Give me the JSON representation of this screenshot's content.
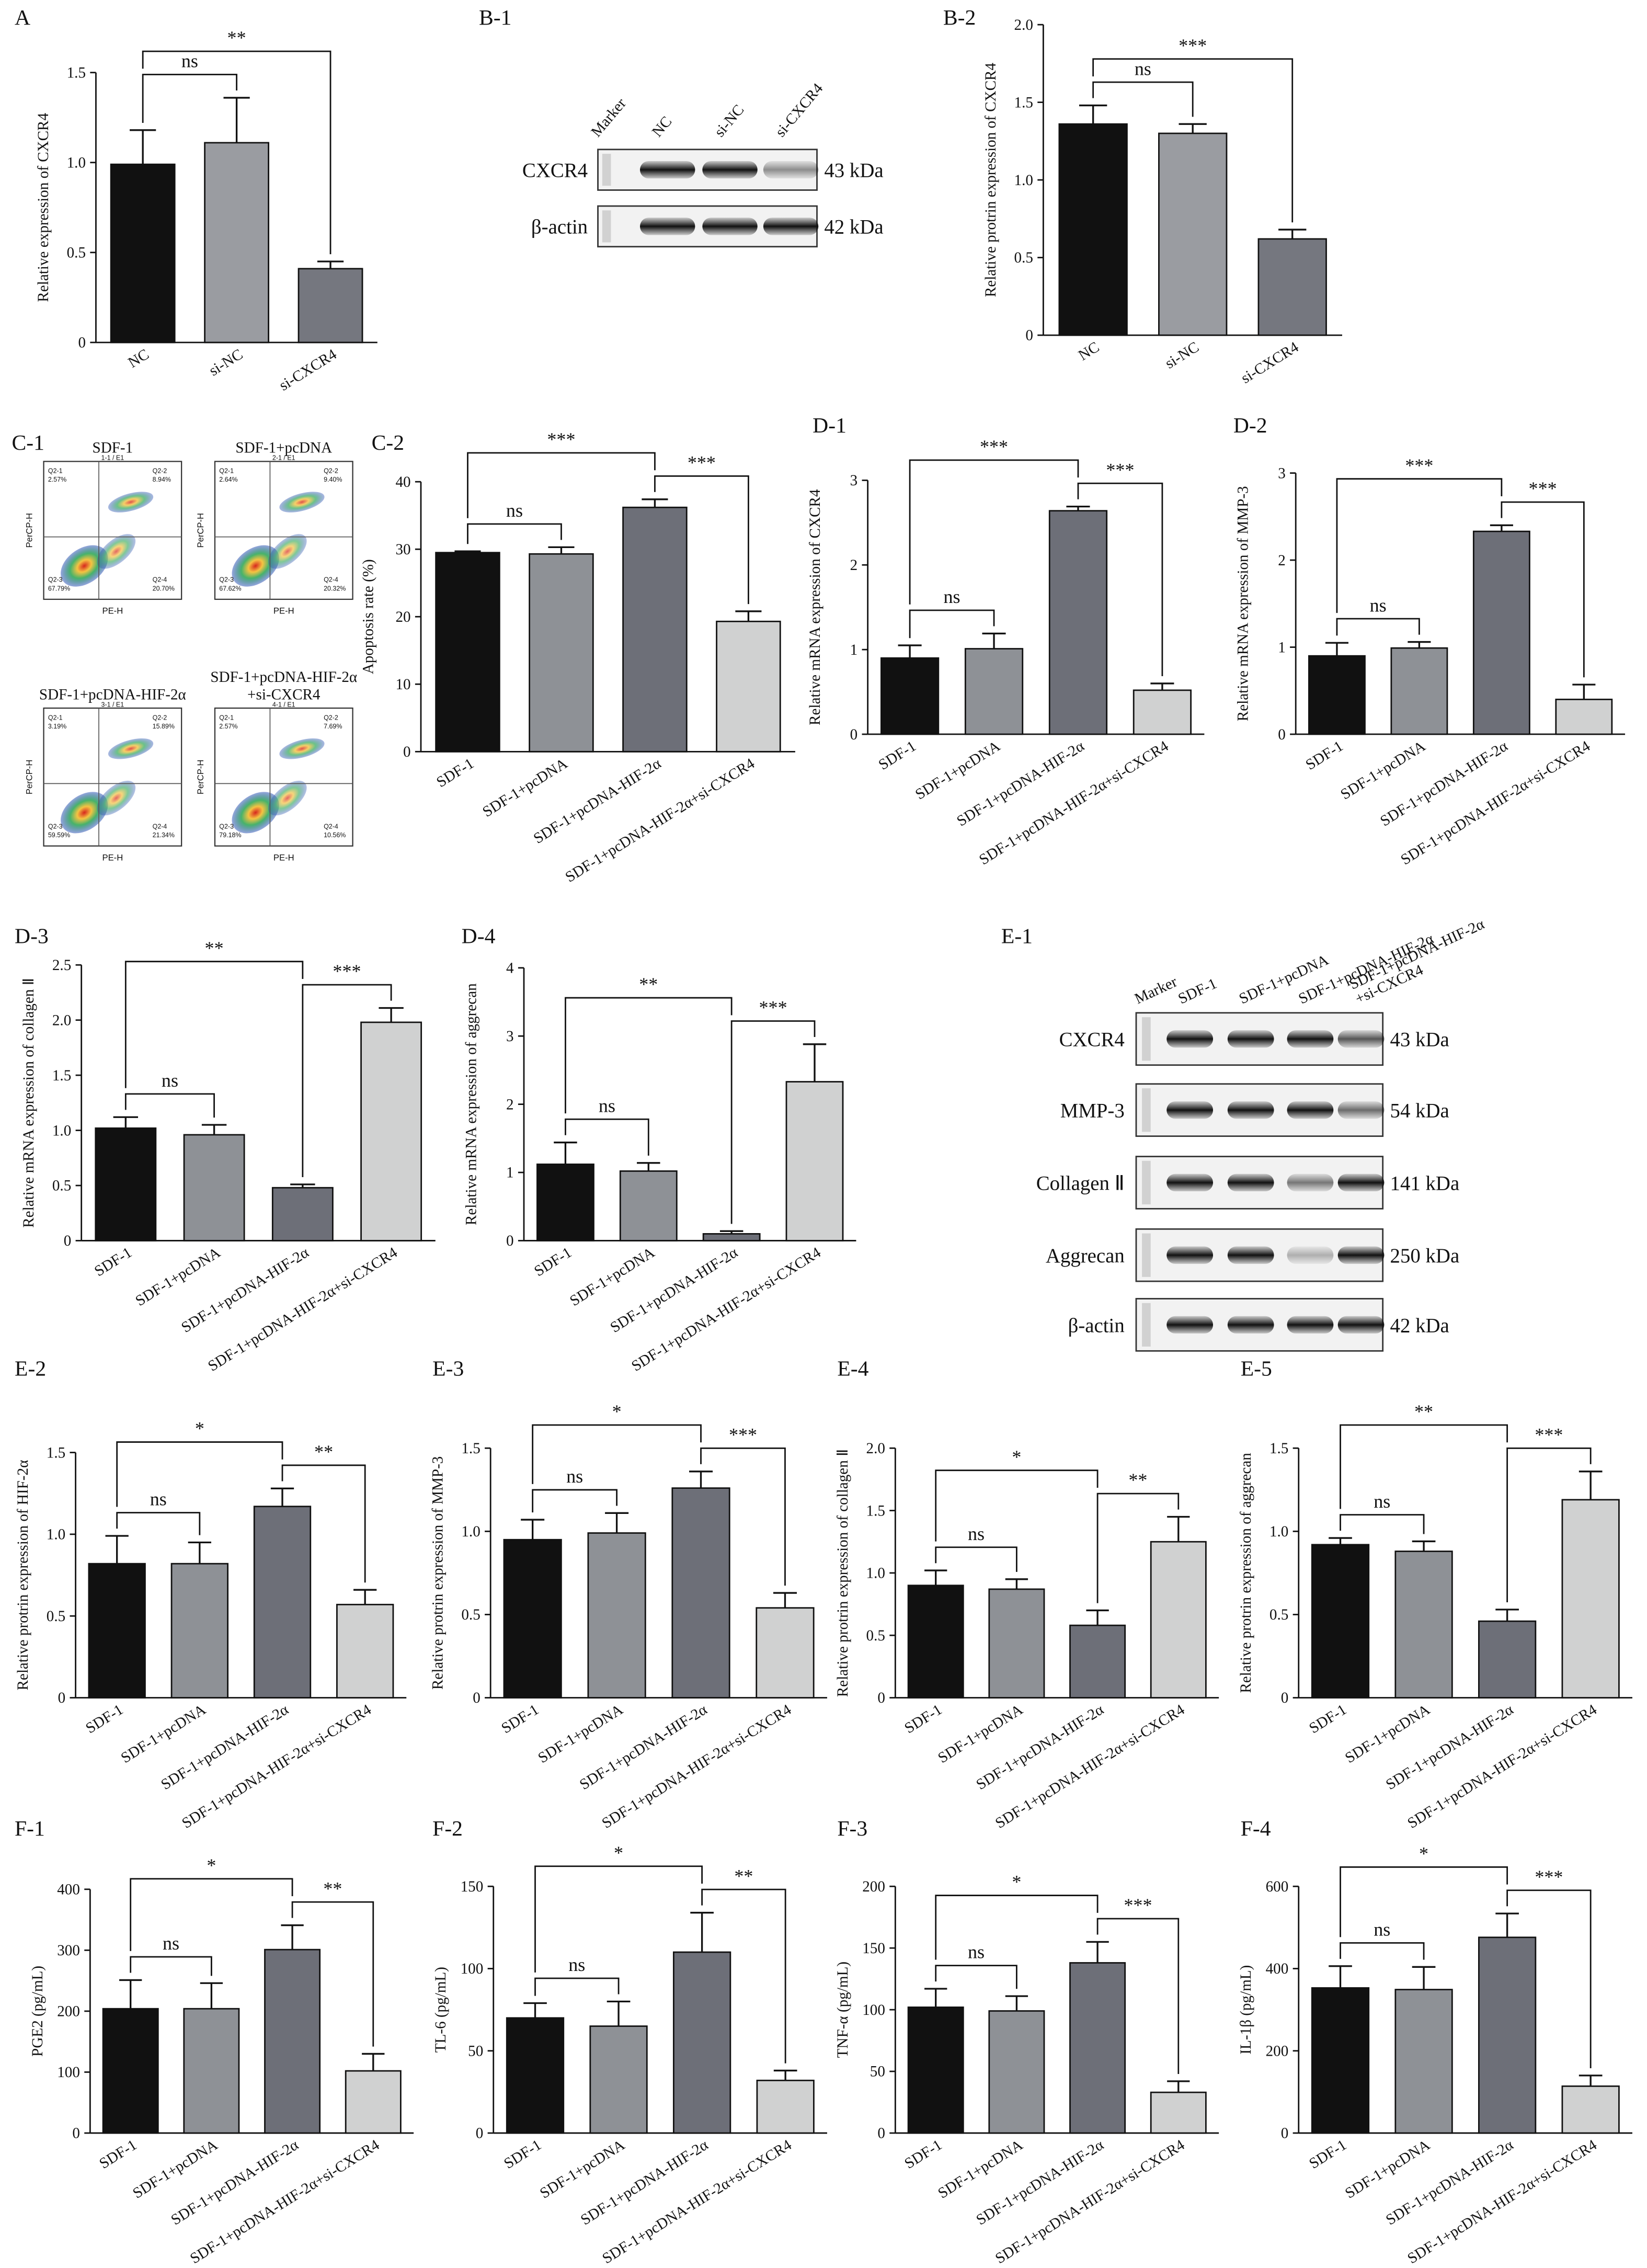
{
  "chart_data": [
    {
      "type": "bar",
      "panel": "A",
      "y_label": "Relative expression of CXCR4",
      "categories": [
        "NC",
        "si-NC",
        "si-CXCR4"
      ],
      "values": [
        0.99,
        1.11,
        0.41
      ],
      "errors": [
        0.19,
        0.25,
        0.04
      ],
      "colors": [
        "#111111",
        "#9a9ca1",
        "#75777f"
      ],
      "ylim": [
        0,
        1.5
      ],
      "yticks": [
        0,
        0.5,
        {
          "value": 1,
          "label": "1.0"
        },
        1.5
      ],
      "comparisons": [
        {
          "from": "NC",
          "to": "si-NC",
          "label": "ns"
        },
        {
          "from": "NC",
          "to": "si-CXCR4",
          "label": "**"
        }
      ]
    },
    {
      "type": "bar",
      "panel": "B-2",
      "y_label": "Relative protrin expression of CXCR4",
      "categories": [
        "NC",
        "si-NC",
        "si-CXCR4"
      ],
      "values": [
        1.36,
        1.3,
        0.62
      ],
      "errors": [
        0.12,
        0.06,
        0.06
      ],
      "colors": [
        "#111111",
        "#9a9ca1",
        "#75777f"
      ],
      "ylim": [
        0,
        2
      ],
      "yticks": [
        0,
        0.5,
        {
          "value": 1,
          "label": "1.0"
        },
        1.5,
        {
          "value": 2,
          "label": "2.0"
        }
      ],
      "comparisons": [
        {
          "from": "NC",
          "to": "si-NC",
          "label": "ns"
        },
        {
          "from": "NC",
          "to": "si-CXCR4",
          "label": "***"
        }
      ]
    },
    {
      "type": "bar",
      "panel": "C-2",
      "y_label": "Apoptosis rate (%)",
      "categories": [
        "SDF-1",
        "SDF-1+pcDNA",
        "SDF-1+pcDNA-HIF-2α",
        "SDF-1+pcDNA-HIF-2α+si-CXCR4"
      ],
      "values": [
        29.5,
        29.3,
        36.2,
        19.3
      ],
      "errors": [
        0.2,
        1.0,
        1.2,
        1.5
      ],
      "colors": [
        "#111111",
        "#8e9196",
        "#6d6f78",
        "#d0d1d1"
      ],
      "ylim": [
        0,
        40
      ],
      "yticks": [
        0,
        10,
        20,
        30,
        40
      ],
      "comparisons": [
        {
          "from": "SDF-1",
          "to": "SDF-1+pcDNA",
          "label": "ns"
        },
        {
          "from": "SDF-1+pcDNA-HIF-2α",
          "to": "SDF-1+pcDNA-HIF-2α+si-CXCR4",
          "label": "***"
        },
        {
          "from": "SDF-1",
          "to": "SDF-1+pcDNA-HIF-2α",
          "label": "***"
        }
      ]
    },
    {
      "type": "bar",
      "panel": "D-1",
      "y_label": "Relative mRNA expression of CXCR4",
      "categories": [
        "SDF-1",
        "SDF-1+pcDNA",
        "SDF-1+pcDNA-HIF-2α",
        "SDF-1+pcDNA-HIF-2α+si-CXCR4"
      ],
      "values": [
        0.9,
        1.01,
        2.64,
        0.52
      ],
      "errors": [
        0.15,
        0.18,
        0.05,
        0.08
      ],
      "colors": [
        "#111111",
        "#8e9196",
        "#6d6f78",
        "#d0d1d1"
      ],
      "ylim": [
        0,
        3
      ],
      "yticks": [
        0,
        1,
        2,
        3
      ],
      "comparisons": [
        {
          "from": "SDF-1",
          "to": "SDF-1+pcDNA",
          "label": "ns"
        },
        {
          "from": "SDF-1+pcDNA-HIF-2α",
          "to": "SDF-1+pcDNA-HIF-2α+si-CXCR4",
          "label": "***"
        },
        {
          "from": "SDF-1",
          "to": "SDF-1+pcDNA-HIF-2α",
          "label": "***"
        }
      ]
    },
    {
      "type": "bar",
      "panel": "D-2",
      "y_label": "Relative mRNA expression of MMP-3",
      "categories": [
        "SDF-1",
        "SDF-1+pcDNA",
        "SDF-1+pcDNA-HIF-2α",
        "SDF-1+pcDNA-HIF-2α+si-CXCR4"
      ],
      "values": [
        0.9,
        0.99,
        2.33,
        0.4
      ],
      "errors": [
        0.15,
        0.07,
        0.07,
        0.17
      ],
      "colors": [
        "#111111",
        "#8e9196",
        "#6d6f78",
        "#d0d1d1"
      ],
      "ylim": [
        0,
        3
      ],
      "yticks": [
        0,
        1,
        2,
        3
      ],
      "comparisons": [
        {
          "from": "SDF-1",
          "to": "SDF-1+pcDNA",
          "label": "ns"
        },
        {
          "from": "SDF-1+pcDNA-HIF-2α",
          "to": "SDF-1+pcDNA-HIF-2α+si-CXCR4",
          "label": "***"
        },
        {
          "from": "SDF-1",
          "to": "SDF-1+pcDNA-HIF-2α",
          "label": "***"
        }
      ]
    },
    {
      "type": "bar",
      "panel": "D-3",
      "y_label": "Relative mRNA expression of collagen Ⅱ",
      "categories": [
        "SDF-1",
        "SDF-1+pcDNA",
        "SDF-1+pcDNA-HIF-2α",
        "SDF-1+pcDNA-HIF-2α+si-CXCR4"
      ],
      "values": [
        1.02,
        0.96,
        0.48,
        1.98
      ],
      "errors": [
        0.1,
        0.09,
        0.03,
        0.13
      ],
      "colors": [
        "#111111",
        "#8e9196",
        "#6d6f78",
        "#d0d1d1"
      ],
      "ylim": [
        0,
        2.5
      ],
      "yticks": [
        0,
        0.5,
        {
          "value": 1,
          "label": "1.0"
        },
        1.5,
        {
          "value": 2,
          "label": "2.0"
        },
        2.5
      ],
      "comparisons": [
        {
          "from": "SDF-1",
          "to": "SDF-1+pcDNA",
          "label": "ns"
        },
        {
          "from": "SDF-1+pcDNA-HIF-2α",
          "to": "SDF-1+pcDNA-HIF-2α+si-CXCR4",
          "label": "***"
        },
        {
          "from": "SDF-1",
          "to": "SDF-1+pcDNA-HIF-2α",
          "label": "**"
        }
      ]
    },
    {
      "type": "bar",
      "panel": "D-4",
      "y_label": "Relative mRNA expression of aggrecan",
      "categories": [
        "SDF-1",
        "SDF-1+pcDNA",
        "SDF-1+pcDNA-HIF-2α",
        "SDF-1+pcDNA-HIF-2α+si-CXCR4"
      ],
      "values": [
        1.12,
        1.02,
        0.1,
        2.33
      ],
      "errors": [
        0.32,
        0.12,
        0.04,
        0.55
      ],
      "colors": [
        "#111111",
        "#8e9196",
        "#6d6f78",
        "#d0d1d1"
      ],
      "ylim": [
        0,
        4
      ],
      "yticks": [
        0,
        1,
        2,
        3,
        4
      ],
      "comparisons": [
        {
          "from": "SDF-1",
          "to": "SDF-1+pcDNA",
          "label": "ns"
        },
        {
          "from": "SDF-1+pcDNA-HIF-2α",
          "to": "SDF-1+pcDNA-HIF-2α+si-CXCR4",
          "label": "***"
        },
        {
          "from": "SDF-1",
          "to": "SDF-1+pcDNA-HIF-2α",
          "label": "**"
        }
      ]
    },
    {
      "type": "bar",
      "panel": "E-2",
      "y_label": "Relative protrin expression of HIF-2α",
      "categories": [
        "SDF-1",
        "SDF-1+pcDNA",
        "SDF-1+pcDNA-HIF-2α",
        "SDF-1+pcDNA-HIF-2α+si-CXCR4"
      ],
      "values": [
        0.82,
        0.82,
        1.17,
        0.57
      ],
      "errors": [
        0.17,
        0.13,
        0.11,
        0.09
      ],
      "colors": [
        "#111111",
        "#8e9196",
        "#6d6f78",
        "#d0d1d1"
      ],
      "ylim": [
        0,
        1.5
      ],
      "yticks": [
        0,
        0.5,
        {
          "value": 1,
          "label": "1.0"
        },
        1.5
      ],
      "comparisons": [
        {
          "from": "SDF-1",
          "to": "SDF-1+pcDNA",
          "label": "ns"
        },
        {
          "from": "SDF-1+pcDNA-HIF-2α",
          "to": "SDF-1+pcDNA-HIF-2α+si-CXCR4",
          "label": "**"
        },
        {
          "from": "SDF-1",
          "to": "SDF-1+pcDNA-HIF-2α",
          "label": "*"
        }
      ]
    },
    {
      "type": "bar",
      "panel": "E-3",
      "y_label": "Relative protrin expression of MMP-3",
      "categories": [
        "SDF-1",
        "SDF-1+pcDNA",
        "SDF-1+pcDNA-HIF-2α",
        "SDF-1+pcDNA-HIF-2α+si-CXCR4"
      ],
      "values": [
        0.95,
        0.99,
        1.26,
        0.54
      ],
      "errors": [
        0.12,
        0.12,
        0.1,
        0.09
      ],
      "colors": [
        "#111111",
        "#8e9196",
        "#6d6f78",
        "#d0d1d1"
      ],
      "ylim": [
        0,
        1.5
      ],
      "yticks": [
        0,
        0.5,
        {
          "value": 1,
          "label": "1.0"
        },
        1.5
      ],
      "comparisons": [
        {
          "from": "SDF-1",
          "to": "SDF-1+pcDNA",
          "label": "ns"
        },
        {
          "from": "SDF-1+pcDNA-HIF-2α",
          "to": "SDF-1+pcDNA-HIF-2α+si-CXCR4",
          "label": "***"
        },
        {
          "from": "SDF-1",
          "to": "SDF-1+pcDNA-HIF-2α",
          "label": "*"
        }
      ]
    },
    {
      "type": "bar",
      "panel": "E-4",
      "y_label": "Relative protrin expression of collagen Ⅱ",
      "categories": [
        "SDF-1",
        "SDF-1+pcDNA",
        "SDF-1+pcDNA-HIF-2α",
        "SDF-1+pcDNA-HIF-2α+si-CXCR4"
      ],
      "values": [
        0.9,
        0.87,
        0.58,
        1.25
      ],
      "errors": [
        0.12,
        0.08,
        0.12,
        0.2
      ],
      "colors": [
        "#111111",
        "#8e9196",
        "#6d6f78",
        "#d0d1d1"
      ],
      "ylim": [
        0,
        2
      ],
      "yticks": [
        0,
        0.5,
        {
          "value": 1,
          "label": "1.0"
        },
        1.5,
        {
          "value": 2,
          "label": "2.0"
        }
      ],
      "comparisons": [
        {
          "from": "SDF-1",
          "to": "SDF-1+pcDNA",
          "label": "ns"
        },
        {
          "from": "SDF-1+pcDNA-HIF-2α",
          "to": "SDF-1+pcDNA-HIF-2α+si-CXCR4",
          "label": "**"
        },
        {
          "from": "SDF-1",
          "to": "SDF-1+pcDNA-HIF-2α",
          "label": "*"
        }
      ]
    },
    {
      "type": "bar",
      "panel": "E-5",
      "y_label": "Relative protrin expression of aggrecan",
      "categories": [
        "SDF-1",
        "SDF-1+pcDNA",
        "SDF-1+pcDNA-HIF-2α",
        "SDF-1+pcDNA-HIF-2α+si-CXCR4"
      ],
      "values": [
        0.92,
        0.88,
        0.46,
        1.19
      ],
      "errors": [
        0.04,
        0.06,
        0.07,
        0.17
      ],
      "colors": [
        "#111111",
        "#8e9196",
        "#6d6f78",
        "#d0d1d1"
      ],
      "ylim": [
        0,
        1.5
      ],
      "yticks": [
        0,
        0.5,
        {
          "value": 1,
          "label": "1.0"
        },
        1.5
      ],
      "comparisons": [
        {
          "from": "SDF-1",
          "to": "SDF-1+pcDNA",
          "label": "ns"
        },
        {
          "from": "SDF-1+pcDNA-HIF-2α",
          "to": "SDF-1+pcDNA-HIF-2α+si-CXCR4",
          "label": "***"
        },
        {
          "from": "SDF-1",
          "to": "SDF-1+pcDNA-HIF-2α",
          "label": "**"
        }
      ]
    },
    {
      "type": "bar",
      "panel": "F-1",
      "y_label": "PGE2 (pg/mL)",
      "categories": [
        "SDF-1",
        "SDF-1+pcDNA",
        "SDF-1+pcDNA-HIF-2α",
        "SDF-1+pcDNA-HIF-2α+si-CXCR4"
      ],
      "values": [
        204,
        204,
        301,
        102
      ],
      "errors": [
        47,
        42,
        40,
        28
      ],
      "colors": [
        "#111111",
        "#8e9196",
        "#6d6f78",
        "#d0d1d1"
      ],
      "ylim": [
        0,
        400
      ],
      "yticks": [
        0,
        100,
        200,
        300,
        400
      ],
      "comparisons": [
        {
          "from": "SDF-1",
          "to": "SDF-1+pcDNA",
          "label": "ns"
        },
        {
          "from": "SDF-1+pcDNA-HIF-2α",
          "to": "SDF-1+pcDNA-HIF-2α+si-CXCR4",
          "label": "**"
        },
        {
          "from": "SDF-1",
          "to": "SDF-1+pcDNA-HIF-2α",
          "label": "*"
        }
      ]
    },
    {
      "type": "bar",
      "panel": "F-2",
      "y_label": "TL-6 (pg/mL)",
      "categories": [
        "SDF-1",
        "SDF-1+pcDNA",
        "SDF-1+pcDNA-HIF-2α",
        "SDF-1+pcDNA-HIF-2α+si-CXCR4"
      ],
      "values": [
        70,
        65,
        110,
        32
      ],
      "errors": [
        9,
        15,
        24,
        6
      ],
      "colors": [
        "#111111",
        "#8e9196",
        "#6d6f78",
        "#d0d1d1"
      ],
      "ylim": [
        0,
        150
      ],
      "yticks": [
        0,
        50,
        100,
        150
      ],
      "comparisons": [
        {
          "from": "SDF-1",
          "to": "SDF-1+pcDNA",
          "label": "ns"
        },
        {
          "from": "SDF-1+pcDNA-HIF-2α",
          "to": "SDF-1+pcDNA-HIF-2α+si-CXCR4",
          "label": "**"
        },
        {
          "from": "SDF-1",
          "to": "SDF-1+pcDNA-HIF-2α",
          "label": "*"
        }
      ]
    },
    {
      "type": "bar",
      "panel": "F-3",
      "y_label": "TNF-α (pg/mL)",
      "categories": [
        "SDF-1",
        "SDF-1+pcDNA",
        "SDF-1+pcDNA-HIF-2α",
        "SDF-1+pcDNA-HIF-2α+si-CXCR4"
      ],
      "values": [
        102,
        99,
        138,
        33
      ],
      "errors": [
        15,
        12,
        17,
        9
      ],
      "colors": [
        "#111111",
        "#8e9196",
        "#6d6f78",
        "#d0d1d1"
      ],
      "ylim": [
        0,
        200
      ],
      "yticks": [
        0,
        50,
        100,
        150,
        200
      ],
      "comparisons": [
        {
          "from": "SDF-1",
          "to": "SDF-1+pcDNA",
          "label": "ns"
        },
        {
          "from": "SDF-1+pcDNA-HIF-2α",
          "to": "SDF-1+pcDNA-HIF-2α+si-CXCR4",
          "label": "***"
        },
        {
          "from": "SDF-1",
          "to": "SDF-1+pcDNA-HIF-2α",
          "label": "*"
        }
      ]
    },
    {
      "type": "bar",
      "panel": "F-4",
      "y_label": "IL-1β (pg/mL)",
      "categories": [
        "SDF-1",
        "SDF-1+pcDNA",
        "SDF-1+pcDNA-HIF-2α",
        "SDF-1+pcDNA-HIF-2α+si-CXCR4"
      ],
      "values": [
        353,
        349,
        476,
        114
      ],
      "errors": [
        53,
        55,
        58,
        26
      ],
      "colors": [
        "#111111",
        "#8e9196",
        "#6d6f78",
        "#d0d1d1"
      ],
      "ylim": [
        0,
        600
      ],
      "yticks": [
        0,
        200,
        400,
        600
      ],
      "comparisons": [
        {
          "from": "SDF-1",
          "to": "SDF-1+pcDNA",
          "label": "ns"
        },
        {
          "from": "SDF-1+pcDNA-HIF-2α",
          "to": "SDF-1+pcDNA-HIF-2α+si-CXCR4",
          "label": "***"
        },
        {
          "from": "SDF-1",
          "to": "SDF-1+pcDNA-HIF-2α",
          "label": "*"
        }
      ]
    }
  ],
  "western_blots": [
    {
      "panel": "B-1",
      "lanes": [
        "Marker",
        "NC",
        "si-NC",
        "si-CXCR4"
      ],
      "rows": [
        {
          "protein": "CXCR4",
          "size": "43 kDa"
        },
        {
          "protein": "β-actin",
          "size": "42 kDa"
        }
      ]
    },
    {
      "panel": "E-1",
      "lanes": [
        "Marker",
        "SDF-1",
        "SDF-1+pcDNA",
        "SDF-1+pcDNA-HIF-2α",
        [
          "SDF-1+pcDNA-HIF-2α",
          "+si-CXCR4"
        ]
      ],
      "rows": [
        {
          "protein": "CXCR4",
          "size": "43 kDa"
        },
        {
          "protein": "MMP-3",
          "size": "54 kDa"
        },
        {
          "protein": "Collagen Ⅱ",
          "size": "141 kDa"
        },
        {
          "protein": "Aggrecan",
          "size": "250 kDa"
        },
        {
          "protein": "β-actin",
          "size": "42 kDa"
        }
      ]
    }
  ],
  "flow_cytometry": {
    "panel": "C-1",
    "x_label": "PE-H",
    "y_label": "PerCP-H",
    "plots": [
      {
        "title": [
          "SDF-1"
        ],
        "gate": "1-1 / E1",
        "quadrants": [
          {
            "name": "Q2-1",
            "percent": "2.57%"
          },
          {
            "name": "Q2-2",
            "percent": "8.94%"
          },
          {
            "name": "Q2-3",
            "percent": "67.79%"
          },
          {
            "name": "Q2-4",
            "percent": "20.70%"
          }
        ]
      },
      {
        "title": [
          "SDF-1+pcDNA"
        ],
        "gate": "2-1 / E1",
        "quadrants": [
          {
            "name": "Q2-1",
            "percent": "2.64%"
          },
          {
            "name": "Q2-2",
            "percent": "9.40%"
          },
          {
            "name": "Q2-3",
            "percent": "67.62%"
          },
          {
            "name": "Q2-4",
            "percent": "20.32%"
          }
        ]
      },
      {
        "title": [
          "SDF-1+pcDNA-HIF-2α"
        ],
        "gate": "3-1 / E1",
        "quadrants": [
          {
            "name": "Q2-1",
            "percent": "3.19%"
          },
          {
            "name": "Q2-2",
            "percent": "15.89%"
          },
          {
            "name": "Q2-3",
            "percent": "59.59%"
          },
          {
            "name": "Q2-4",
            "percent": "21.34%"
          }
        ]
      },
      {
        "title": [
          "SDF-1+pcDNA-HIF-2α",
          "+si-CXCR4"
        ],
        "gate": "4-1 / E1",
        "quadrants": [
          {
            "name": "Q2-1",
            "percent": "2.57%"
          },
          {
            "name": "Q2-2",
            "percent": "7.69%"
          },
          {
            "name": "Q2-3",
            "percent": "79.18%"
          },
          {
            "name": "Q2-4",
            "percent": "10.56%"
          }
        ]
      }
    ]
  }
}
